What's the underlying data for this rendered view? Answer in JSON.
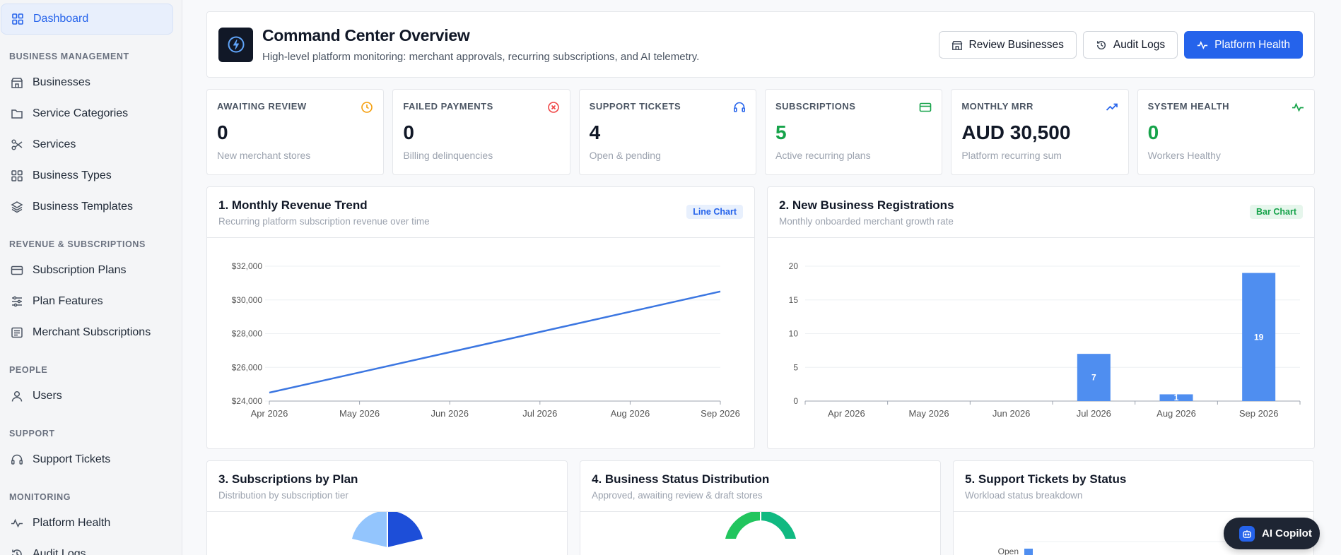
{
  "sidebar": {
    "dashboard": "Dashboard",
    "sections": {
      "business": "BUSINESS MANAGEMENT",
      "revenue": "REVENUE & SUBSCRIPTIONS",
      "people": "PEOPLE",
      "support": "SUPPORT",
      "monitoring": "MONITORING"
    },
    "items": {
      "businesses": "Businesses",
      "service_categories": "Service Categories",
      "services": "Services",
      "business_types": "Business Types",
      "business_templates": "Business Templates",
      "subscription_plans": "Subscription Plans",
      "plan_features": "Plan Features",
      "merchant_subscriptions": "Merchant Subscriptions",
      "users": "Users",
      "support_tickets": "Support Tickets",
      "platform_health": "Platform Health",
      "audit_logs": "Audit Logs"
    }
  },
  "header": {
    "title": "Command Center Overview",
    "subtitle": "High-level platform monitoring: merchant approvals, recurring subscriptions, and AI telemetry.",
    "buttons": {
      "review": "Review Businesses",
      "audit": "Audit Logs",
      "health": "Platform Health"
    }
  },
  "stats": [
    {
      "label": "AWAITING REVIEW",
      "value": "0",
      "sub": "New merchant stores",
      "icon": "clock-icon",
      "color": "#f59e0b"
    },
    {
      "label": "FAILED PAYMENTS",
      "value": "0",
      "sub": "Billing delinquencies",
      "icon": "x-circle-icon",
      "color": "#ef4444"
    },
    {
      "label": "SUPPORT TICKETS",
      "value": "4",
      "sub": "Open & pending",
      "icon": "headset-icon",
      "color": "#2563eb"
    },
    {
      "label": "SUBSCRIPTIONS",
      "value": "5",
      "sub": "Active recurring plans",
      "icon": "credit-card-icon",
      "color": "#16a34a"
    },
    {
      "label": "MONTHLY MRR",
      "value": "AUD 30,500",
      "sub": "Platform recurring sum",
      "icon": "trending-up-icon",
      "color": "#2563eb"
    },
    {
      "label": "SYSTEM HEALTH",
      "value": "0",
      "sub": "Workers Healthy",
      "icon": "activity-icon",
      "color": "#16a34a"
    }
  ],
  "charts": {
    "revenue": {
      "title": "1. Monthly Revenue Trend",
      "sub": "Recurring platform subscription revenue over time",
      "badge": "Line Chart"
    },
    "registrations": {
      "title": "2. New Business Registrations",
      "sub": "Monthly onboarded merchant growth rate",
      "badge": "Bar Chart"
    },
    "plans": {
      "title": "3. Subscriptions by Plan",
      "sub": "Distribution by subscription tier"
    },
    "status": {
      "title": "4. Business Status Distribution",
      "sub": "Approved, awaiting review & draft stores"
    },
    "tickets": {
      "title": "5. Support Tickets by Status",
      "sub": "Workload status breakdown",
      "first_label": "Open"
    }
  },
  "chart_data": [
    {
      "type": "line",
      "title": "1. Monthly Revenue Trend",
      "x": [
        "Apr 2026",
        "May 2026",
        "Jun 2026",
        "Jul 2026",
        "Aug 2026",
        "Sep 2026"
      ],
      "y_ticks": [
        "$24,000",
        "$26,000",
        "$28,000",
        "$30,000",
        "$32,000"
      ],
      "ylim": [
        24000,
        32000
      ],
      "series": [
        {
          "values": [
            24500,
            25700,
            26900,
            28100,
            29300,
            30500
          ],
          "color": "#3b76e1"
        }
      ]
    },
    {
      "type": "bar",
      "title": "2. New Business Registrations",
      "categories": [
        "Apr 2026",
        "May 2026",
        "Jun 2026",
        "Jul 2026",
        "Aug 2026",
        "Sep 2026"
      ],
      "y_ticks": [
        "0",
        "5",
        "10",
        "15",
        "20"
      ],
      "ylim": [
        0,
        20
      ],
      "values": [
        0,
        0,
        0,
        7,
        1,
        19
      ],
      "color": "#4f8ef0"
    }
  ],
  "copilot": {
    "label": "AI Copilot"
  }
}
